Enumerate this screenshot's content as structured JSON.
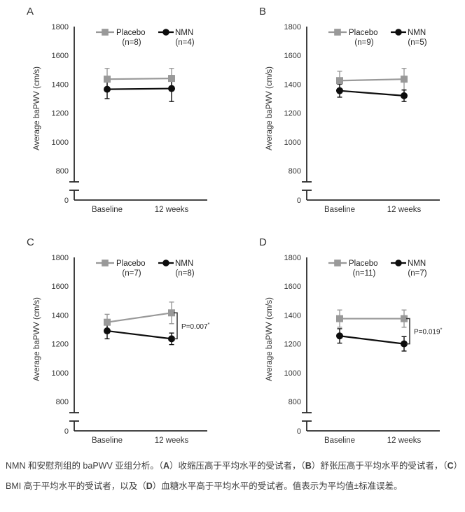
{
  "style": {
    "background": "#ffffff",
    "placebo_color": "#999999",
    "nmn_color": "#0d0d0d",
    "axis_color": "#2b2b2b",
    "text_color": "#333333",
    "caption_color": "#3d3d3d"
  },
  "chart_data": [
    {
      "type": "line",
      "panel_letter": "A",
      "ylabel": "Average baPWV (cm/s)",
      "x_categories": [
        "Baseline",
        "12 weeks"
      ],
      "ytick_labels": [
        1800,
        1600,
        1400,
        1200,
        1000,
        800
      ],
      "origin_label": "0",
      "y_axis_break": true,
      "ylim_main": [
        800,
        1800
      ],
      "legend_position": "top",
      "series": [
        {
          "name": "Placebo",
          "n_label": "(n=8)",
          "marker": "square",
          "color": "#999999",
          "values": [
            1435,
            1440
          ],
          "stderr": [
            75,
            70
          ]
        },
        {
          "name": "NMN",
          "n_label": "(n=4)",
          "marker": "circle",
          "color": "#0d0d0d",
          "values": [
            1365,
            1370
          ],
          "stderr": [
            65,
            90
          ]
        }
      ],
      "p_annotation": null
    },
    {
      "type": "line",
      "panel_letter": "B",
      "ylabel": "Average baPWV (cm/s)",
      "x_categories": [
        "Baseline",
        "12 weeks"
      ],
      "ytick_labels": [
        1800,
        1600,
        1400,
        1200,
        1000,
        800
      ],
      "origin_label": "0",
      "y_axis_break": true,
      "ylim_main": [
        800,
        1800
      ],
      "legend_position": "top",
      "series": [
        {
          "name": "Placebo",
          "n_label": "(n=9)",
          "marker": "square",
          "color": "#999999",
          "values": [
            1425,
            1435
          ],
          "stderr": [
            65,
            75
          ]
        },
        {
          "name": "NMN",
          "n_label": "(n=5)",
          "marker": "circle",
          "color": "#0d0d0d",
          "values": [
            1355,
            1320
          ],
          "stderr": [
            45,
            40
          ]
        }
      ],
      "p_annotation": null
    },
    {
      "type": "line",
      "panel_letter": "C",
      "ylabel": "Average baPWV (cm/s)",
      "x_categories": [
        "Baseline",
        "12 weeks"
      ],
      "ytick_labels": [
        1800,
        1600,
        1400,
        1200,
        1000,
        800
      ],
      "origin_label": "0",
      "y_axis_break": true,
      "ylim_main": [
        800,
        1800
      ],
      "legend_position": "top",
      "series": [
        {
          "name": "Placebo",
          "n_label": "(n=7)",
          "marker": "square",
          "color": "#999999",
          "values": [
            1350,
            1415
          ],
          "stderr": [
            55,
            75
          ]
        },
        {
          "name": "NMN",
          "n_label": "(n=8)",
          "marker": "circle",
          "color": "#0d0d0d",
          "values": [
            1290,
            1235
          ],
          "stderr": [
            55,
            40
          ]
        }
      ],
      "p_annotation": {
        "text": "P=0.007",
        "sup": "*"
      }
    },
    {
      "type": "line",
      "panel_letter": "D",
      "ylabel": "Average baPWV (cm/s)",
      "x_categories": [
        "Baseline",
        "12 weeks"
      ],
      "ytick_labels": [
        1800,
        1600,
        1400,
        1200,
        1000,
        800
      ],
      "origin_label": "0",
      "y_axis_break": true,
      "ylim_main": [
        800,
        1800
      ],
      "legend_position": "top",
      "series": [
        {
          "name": "Placebo",
          "n_label": "(n=11)",
          "marker": "square",
          "color": "#999999",
          "values": [
            1375,
            1375
          ],
          "stderr": [
            60,
            60
          ]
        },
        {
          "name": "NMN",
          "n_label": "(n=7)",
          "marker": "circle",
          "color": "#0d0d0d",
          "values": [
            1255,
            1200
          ],
          "stderr": [
            50,
            50
          ]
        }
      ],
      "p_annotation": {
        "text": "P=0.019",
        "sup": "*"
      }
    }
  ],
  "caption": {
    "segments": [
      {
        "text": "NMN 和安慰剂组的 baPWV 亚组分析。（",
        "bold": false
      },
      {
        "text": "A",
        "bold": true
      },
      {
        "text": "）收缩压高于平均水平的受试者，（",
        "bold": false
      },
      {
        "text": "B",
        "bold": true
      },
      {
        "text": "）舒张压高于平均水平的受试者，（",
        "bold": false
      },
      {
        "text": "C",
        "bold": true
      },
      {
        "text": "）BMI 高于平均水平的受试者，以及（",
        "bold": false
      },
      {
        "text": "D",
        "bold": true
      },
      {
        "text": "）血糖水平高于平均水平的受试者。值表示为平均值±标准误差。",
        "bold": false
      }
    ]
  }
}
